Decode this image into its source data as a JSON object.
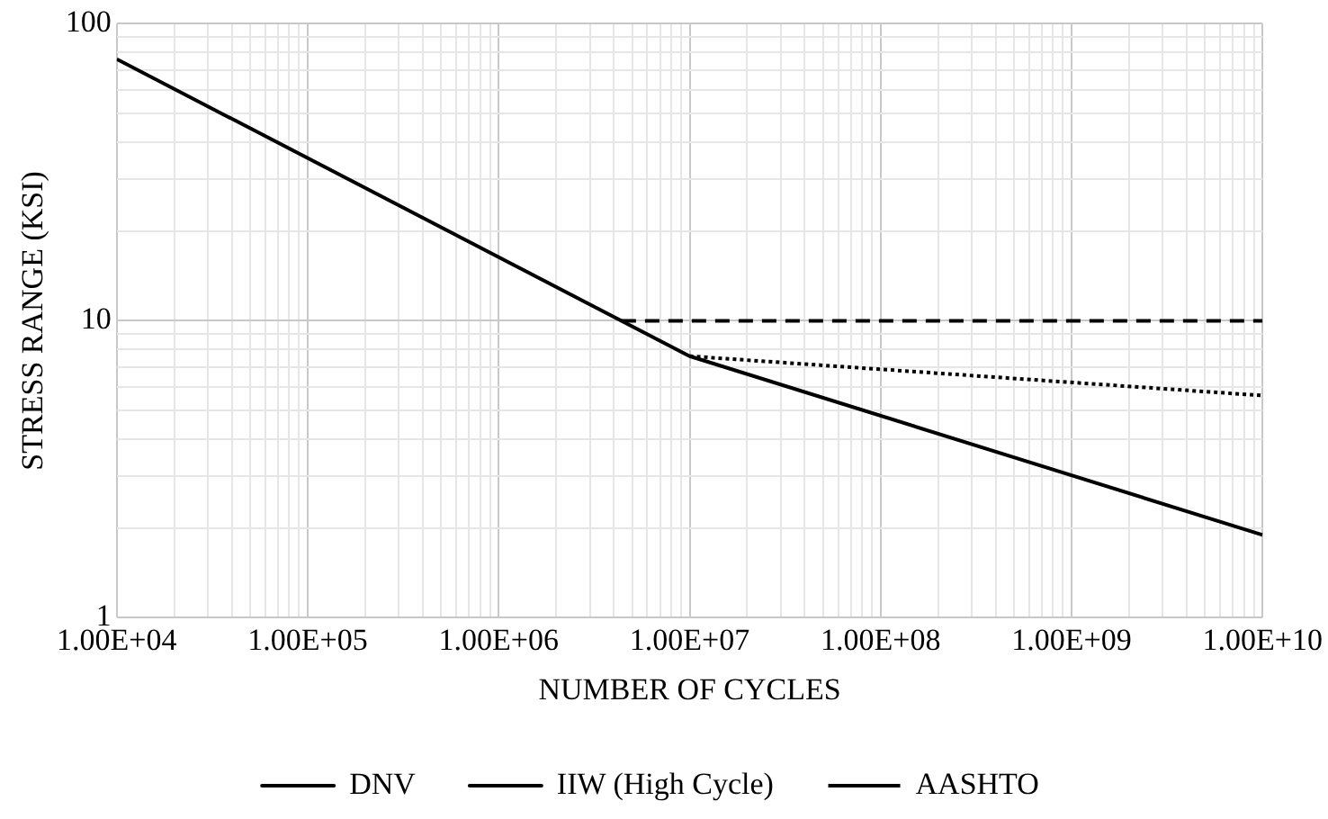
{
  "chart_data": {
    "type": "line",
    "xlabel": "NUMBER OF CYCLES",
    "ylabel": "STRESS RANGE (KSI)",
    "log": "xy",
    "grid": true,
    "legend": "bottom",
    "marker": "none",
    "xlim": [
      10000,
      10000000000
    ],
    "ylim": [
      1,
      100
    ],
    "xticks": [
      {
        "value": 10000,
        "label": "1.00E+04"
      },
      {
        "value": 100000,
        "label": "1.00E+05"
      },
      {
        "value": 1000000,
        "label": "1.00E+06"
      },
      {
        "value": 10000000,
        "label": "1.00E+07"
      },
      {
        "value": 100000000,
        "label": "1.00E+08"
      },
      {
        "value": 1000000000,
        "label": "1.00E+09"
      },
      {
        "value": 10000000000,
        "label": "1.00E+10"
      }
    ],
    "yticks": [
      1,
      10,
      100
    ],
    "series": [
      {
        "name": "DNV",
        "color": "#000000",
        "line_style": "solid",
        "x": [
          10000,
          10000000,
          10000000000
        ],
        "values": [
          76,
          7.6,
          1.9
        ]
      },
      {
        "name": "IIW (High Cycle)",
        "color": "#000000",
        "line_style": "dashed",
        "x": [
          4400000,
          10000000000
        ],
        "values": [
          10,
          10
        ]
      },
      {
        "name": "AASHTO",
        "color": "#000000",
        "line_style": "dotted",
        "x": [
          10000000,
          10000000000
        ],
        "values": [
          7.6,
          5.6
        ]
      }
    ]
  }
}
